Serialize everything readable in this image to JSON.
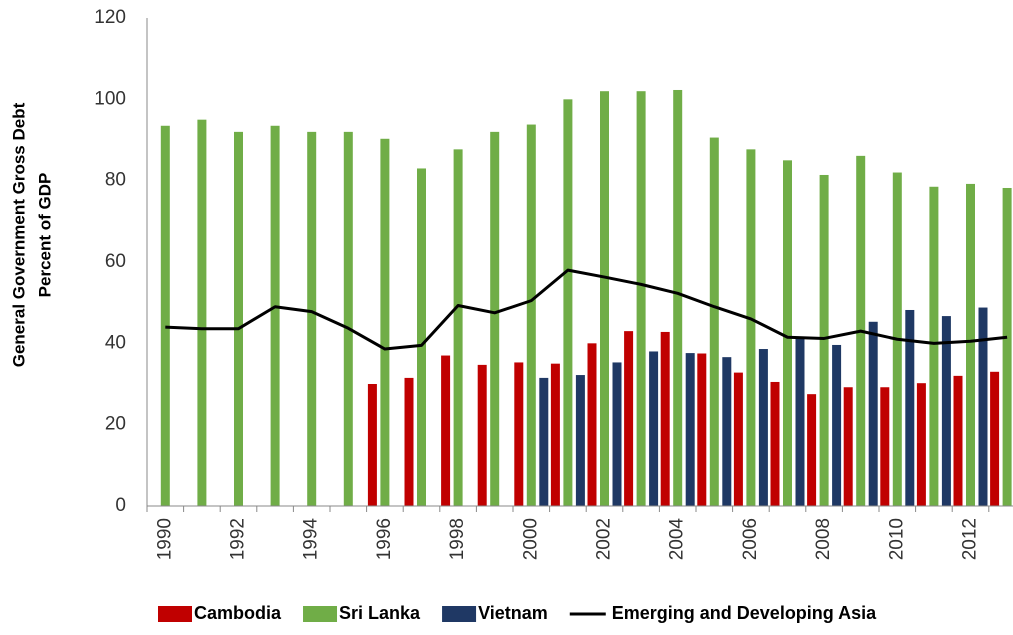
{
  "chart_data": {
    "type": "bar",
    "y_label_lines": [
      "General Government Gross Debt",
      "Percent of GDP"
    ],
    "categories": [
      "1990",
      null,
      "1992",
      null,
      "1994",
      null,
      "1996",
      null,
      "1998",
      null,
      "2000",
      null,
      "2002",
      null,
      "2004",
      null,
      "2006",
      null,
      "2008",
      null,
      "2010",
      null,
      "2012",
      null
    ],
    "series": [
      {
        "name": "Cambodia",
        "color": "#c00000",
        "type": "bar",
        "values": [
          null,
          null,
          null,
          null,
          null,
          null,
          30,
          31.5,
          37,
          34.7,
          35.3,
          35,
          40,
          43,
          42.8,
          37.5,
          32.8,
          30.5,
          27.5,
          29.2,
          29.2,
          30.2,
          32,
          33
        ]
      },
      {
        "name": "Sri Lanka",
        "color": "#70ad47",
        "type": "bar",
        "values": [
          93.5,
          95,
          92,
          93.5,
          92,
          92,
          90.3,
          83,
          87.7,
          92,
          93.8,
          100,
          102,
          102,
          102.3,
          90.6,
          87.7,
          85,
          81.4,
          86.1,
          82,
          78.5,
          79.2,
          78.2
        ]
      },
      {
        "name": "Vietnam",
        "color": "#1f3864",
        "type": "bar",
        "values": [
          null,
          null,
          null,
          null,
          null,
          null,
          null,
          null,
          null,
          null,
          31.5,
          32.2,
          35.3,
          38,
          37.6,
          36.6,
          38.6,
          41.3,
          39.6,
          45.3,
          48.2,
          46.7,
          48.8,
          52.8
        ]
      },
      {
        "name": "Emerging and Developing Asia",
        "color": "#000000",
        "type": "line",
        "values": [
          44,
          43.6,
          43.6,
          49,
          47.8,
          43.7,
          38.6,
          39.5,
          49.3,
          47.5,
          50.5,
          58,
          56.3,
          54.5,
          52.3,
          49,
          46,
          41.5,
          41.2,
          43,
          41,
          40,
          40.5,
          41.5
        ]
      }
    ],
    "ylim": [
      0,
      120
    ],
    "yticks": [
      0,
      20,
      40,
      60,
      80,
      100,
      120
    ],
    "grid": false,
    "legend": "bottom"
  }
}
